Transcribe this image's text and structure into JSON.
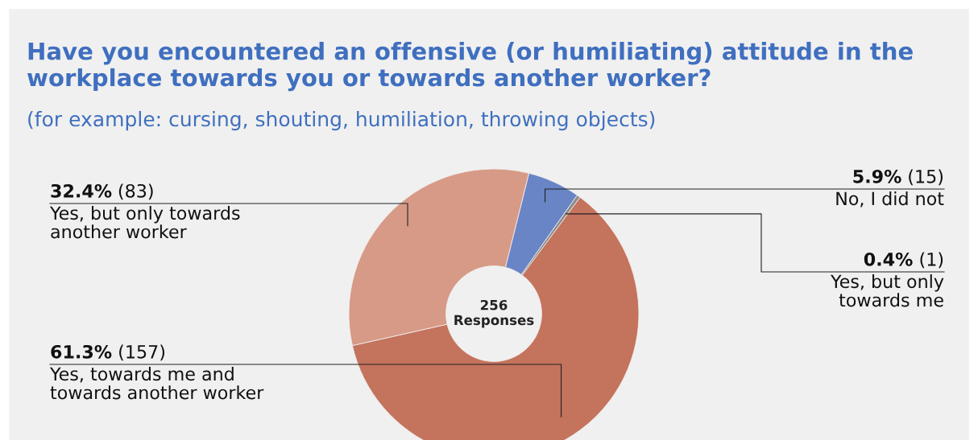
{
  "chart_data": {
    "type": "donut",
    "title": "Have you encountered an offensive (or humiliating) attitude in the workplace towards you or towards another worker?",
    "subtitle": "(for example: cursing, shouting, humiliation, throwing objects)",
    "categories": [
      "No, I did not",
      "Yes, but only towards me",
      "Yes, towards me and towards another worker",
      "Yes, but only towards another worker"
    ],
    "values": [
      15,
      1,
      157,
      83
    ],
    "value_labels": [
      "5.9% (15)",
      "0.4% (1)",
      "61.3% (157)",
      "32.4% (83)"
    ],
    "colors": [
      "#6a85c6",
      "#8c8c8c",
      "#c4735d",
      "#d79a86"
    ],
    "annotations": [
      "256\nResponses"
    ]
  }
}
